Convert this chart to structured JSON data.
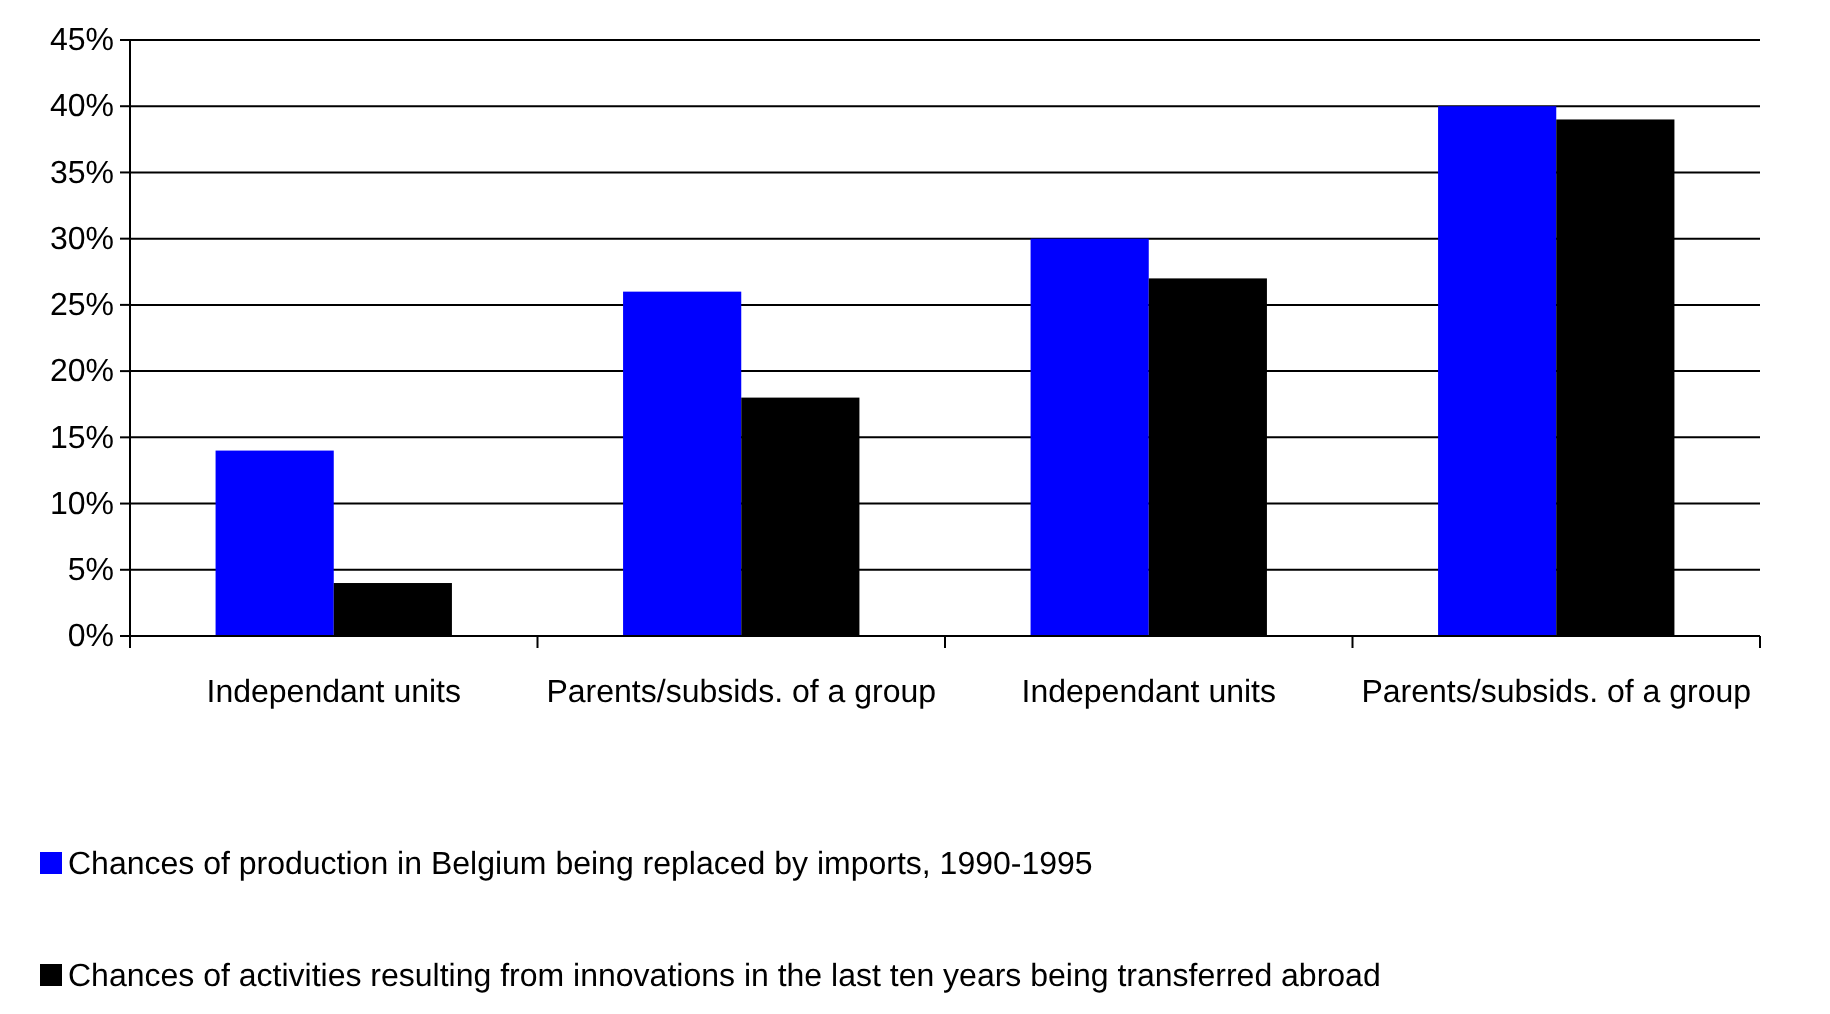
{
  "chart_data": {
    "type": "bar",
    "categories": [
      "Independant units",
      "Parents/subsids. of a group",
      "Independant units",
      "Parents/subsids. of a group"
    ],
    "series": [
      {
        "name": "Chances of production in Belgium being replaced by imports, 1990-1995",
        "color": "#0000ff",
        "values": [
          14,
          26,
          30,
          40
        ]
      },
      {
        "name": "Chances of activities resulting from innovations in the last ten years being transferred abroad",
        "color": "#000000",
        "values": [
          4,
          18,
          27,
          39
        ]
      }
    ],
    "ylim": [
      0,
      45
    ],
    "yticks": [
      {
        "value": 0,
        "label": "0%"
      },
      {
        "value": 5,
        "label": "5%"
      },
      {
        "value": 10,
        "label": "10%"
      },
      {
        "value": 15,
        "label": "15%"
      },
      {
        "value": 20,
        "label": "20%"
      },
      {
        "value": 25,
        "label": "25%"
      },
      {
        "value": 30,
        "label": "30%"
      },
      {
        "value": 35,
        "label": "35%"
      },
      {
        "value": 40,
        "label": "40%"
      },
      {
        "value": 45,
        "label": "45%"
      }
    ],
    "grid": "y",
    "legend": "bottom"
  }
}
